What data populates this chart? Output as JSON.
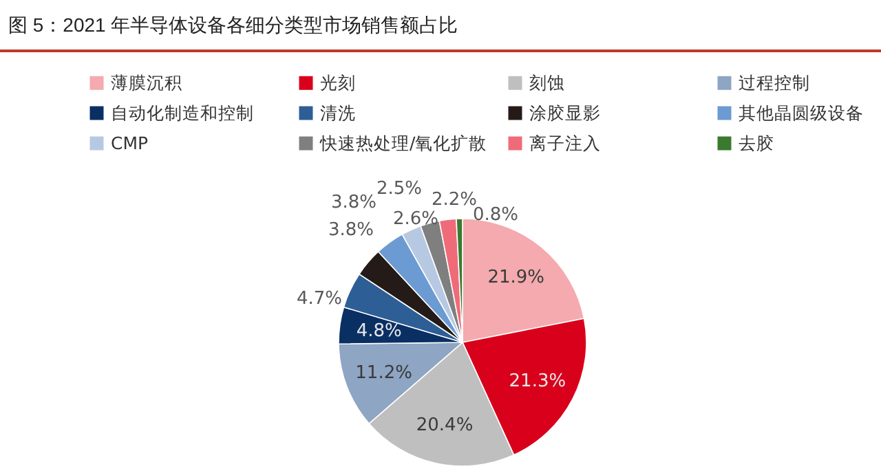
{
  "chart_data": {
    "type": "pie",
    "title": "图 5：2021 年半导体设备各细分类型市场销售额占比",
    "categories": [
      "薄膜沉积",
      "光刻",
      "刻蚀",
      "过程控制",
      "自动化制造和控制",
      "清洗",
      "涂胶显影",
      "其他晶圆级设备",
      "CMP",
      "快速热处理/氧化扩散",
      "离子注入",
      "去胶"
    ],
    "values": [
      21.9,
      21.3,
      20.4,
      11.2,
      4.8,
      4.7,
      3.8,
      3.8,
      2.6,
      2.5,
      2.2,
      0.8
    ],
    "value_labels": [
      "21.9%",
      "21.3%",
      "20.4%",
      "11.2%",
      "4.8%",
      "4.7%",
      "3.8%",
      "3.8%",
      "2.6%",
      "2.5%",
      "2.2%",
      "0.8%"
    ],
    "colors": [
      "#f4aaae",
      "#d9001b",
      "#bfbfbf",
      "#8ea5c4",
      "#0a2f63",
      "#2e5e96",
      "#241a17",
      "#6b9bd2",
      "#b7c9e2",
      "#7f7f7f",
      "#f06b7a",
      "#3a7a2e"
    ],
    "legend": "top"
  }
}
